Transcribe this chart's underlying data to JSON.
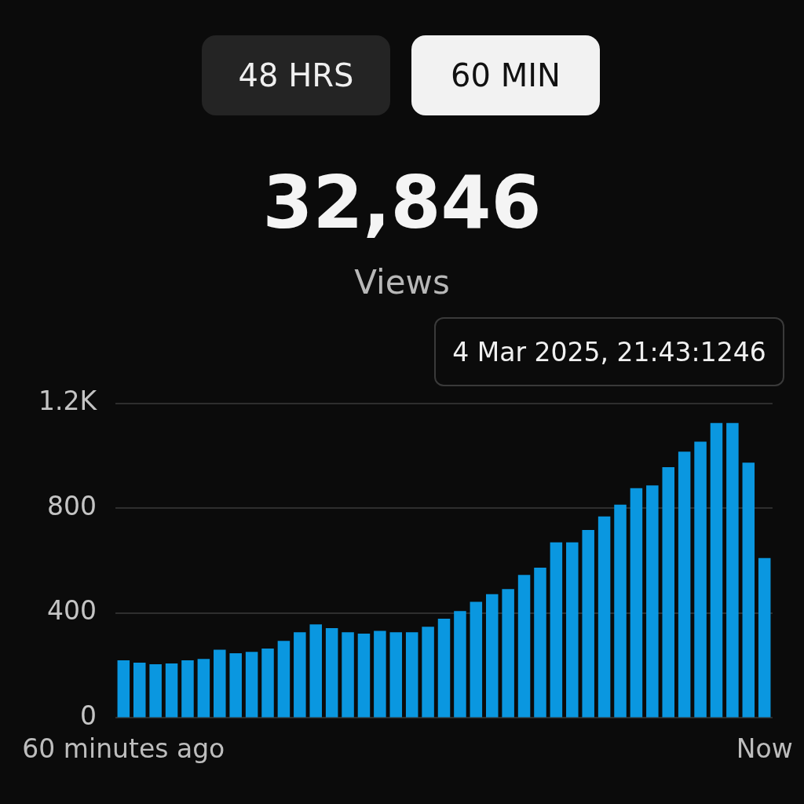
{
  "chart_data": {
    "type": "bar",
    "title": "32,846",
    "subtitle": "Views",
    "annotations": [
      "48 HRS",
      "60 MIN",
      "4 Mar 2025, 21:43:1246"
    ],
    "categories": [
      "60 minutes ago",
      null,
      null,
      null,
      null,
      null,
      null,
      null,
      null,
      null,
      null,
      null,
      null,
      null,
      null,
      null,
      null,
      null,
      null,
      null,
      null,
      null,
      null,
      null,
      null,
      null,
      null,
      null,
      null,
      null,
      null,
      null,
      null,
      null,
      null,
      null,
      null,
      null,
      null,
      null,
      "Now"
    ],
    "values": [
      220,
      211,
      205,
      208,
      220,
      225,
      260,
      247,
      252,
      265,
      294,
      327,
      357,
      343,
      327,
      322,
      332,
      327,
      327,
      348,
      379,
      408,
      443,
      472,
      492,
      546,
      573,
      670,
      670,
      717,
      769,
      814,
      877,
      887,
      957,
      1016,
      1054,
      1125,
      1125,
      974,
      610
    ],
    "color": "#0a97e0",
    "ylim": [
      0,
      1200
    ],
    "yticks": [
      0,
      400,
      800,
      {
        "value": 1200,
        "label": "1.2K"
      }
    ],
    "grid": "y",
    "legend": false
  }
}
